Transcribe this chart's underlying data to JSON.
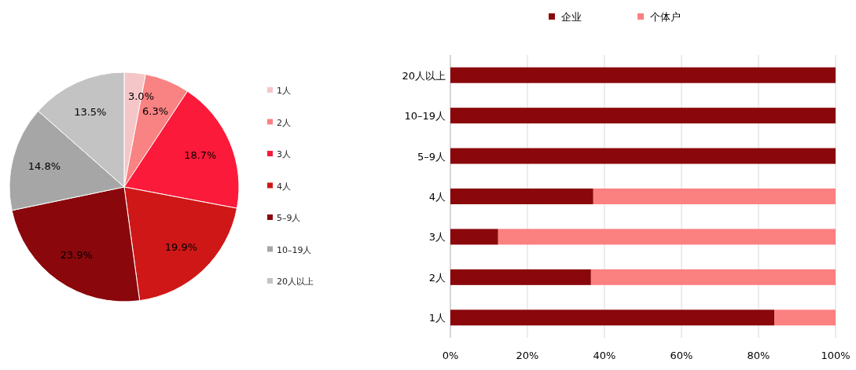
{
  "chart_data": [
    {
      "type": "pie",
      "categories": [
        "1人",
        "2人",
        "3人",
        "4人",
        "5–9人",
        "10–19人",
        "20人以上"
      ],
      "values": [
        3.0,
        6.3,
        18.7,
        19.9,
        23.9,
        14.8,
        13.5
      ],
      "colors": [
        "#f4c6c8",
        "#f98282",
        "#fb1a3a",
        "#cf1717",
        "#8a080c",
        "#a6a6a6",
        "#c3c3c3"
      ],
      "value_labels": [
        "3.0%",
        "6.3%",
        "18.7%",
        "19.9%",
        "23.9%",
        "14.8%",
        "13.5%"
      ],
      "legend": "right"
    },
    {
      "type": "bar",
      "orientation": "horizontal",
      "stacked": true,
      "categories": [
        "20人以上",
        "10–19人",
        "5–9人",
        "4人",
        "3人",
        "2人",
        "1人"
      ],
      "series": [
        {
          "name": "企业",
          "color": "#8a080c",
          "values": [
            100,
            100,
            100,
            37.1,
            12.4,
            36.5,
            84.1
          ]
        },
        {
          "name": "个体户",
          "color": "#fb8080",
          "values": [
            0,
            0,
            0,
            62.9,
            87.6,
            63.5,
            15.9
          ]
        }
      ],
      "xlim": [
        0,
        100
      ],
      "xticks": [
        {
          "value": 0,
          "label": "0%"
        },
        {
          "value": 20,
          "label": "20%"
        },
        {
          "value": 40,
          "label": "40%"
        },
        {
          "value": 60,
          "label": "60%"
        },
        {
          "value": 80,
          "label": "80%"
        },
        {
          "value": 100,
          "label": "100%"
        }
      ],
      "grid": "x",
      "legend": "top"
    }
  ]
}
